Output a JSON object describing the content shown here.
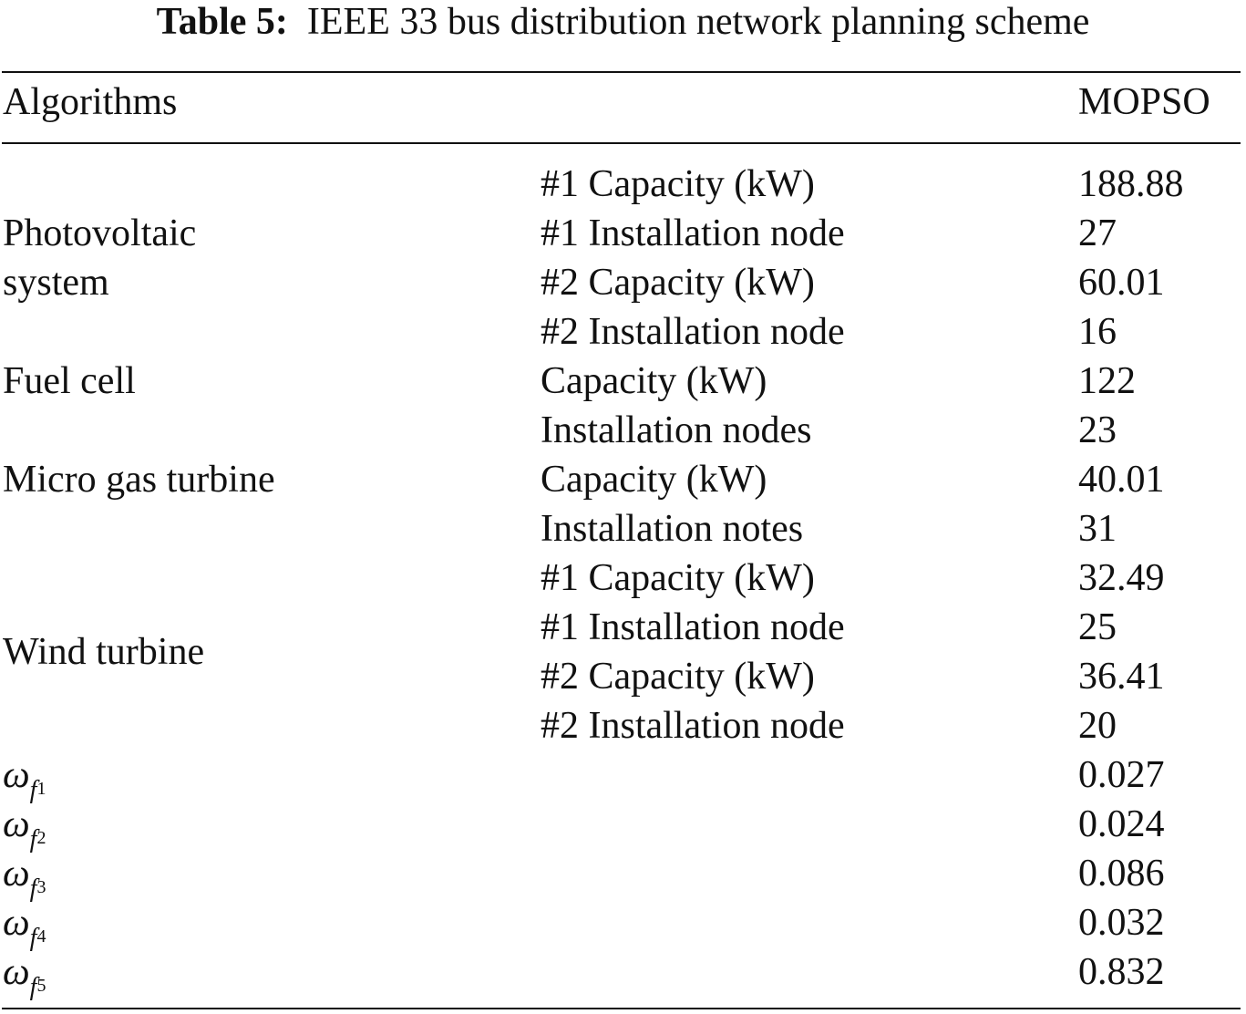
{
  "caption": {
    "label": "Table 5:",
    "title": "IEEE 33 bus distribution network planning scheme"
  },
  "header": {
    "col1": "Algorithms",
    "col3": "MOPSO"
  },
  "groups": {
    "pv_line1": "Photovoltaic",
    "pv_line2": "system",
    "fuel_cell": "Fuel cell",
    "micro_gas": "Micro gas turbine",
    "wind": "Wind turbine"
  },
  "rows": [
    {
      "item": "#1 Capacity (kW)",
      "value": "188.88"
    },
    {
      "item": "#1 Installation node",
      "value": "27"
    },
    {
      "item": "#2 Capacity (kW)",
      "value": "60.01"
    },
    {
      "item": "#2 Installation node",
      "value": "16"
    },
    {
      "item": "Capacity (kW)",
      "value": "122"
    },
    {
      "item": "Installation nodes",
      "value": "23"
    },
    {
      "item": "Capacity (kW)",
      "value": "40.01"
    },
    {
      "item": "Installation notes",
      "value": "31"
    },
    {
      "item": "#1 Capacity (kW)",
      "value": "32.49"
    },
    {
      "item": "#1 Installation node",
      "value": "25"
    },
    {
      "item": "#2 Capacity (kW)",
      "value": "36.41"
    },
    {
      "item": "#2 Installation node",
      "value": "20"
    }
  ],
  "weights": [
    {
      "symbol": "ω",
      "sub": "f",
      "subsub": "1",
      "value": "0.027"
    },
    {
      "symbol": "ω",
      "sub": "f",
      "subsub": "2",
      "value": "0.024"
    },
    {
      "symbol": "ω",
      "sub": "f",
      "subsub": "3",
      "value": "0.086"
    },
    {
      "symbol": "ω",
      "sub": "f",
      "subsub": "4",
      "value": "0.032"
    },
    {
      "symbol": "ω",
      "sub": "f",
      "subsub": "5",
      "value": "0.832"
    }
  ]
}
